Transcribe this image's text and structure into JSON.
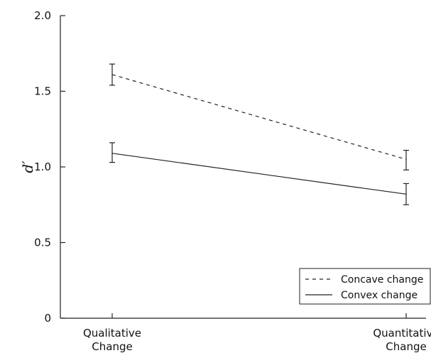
{
  "chart_data": {
    "type": "line",
    "categories": [
      "Qualitative\nChange",
      "Quantitative\nChange"
    ],
    "ylabel": "d′",
    "xlabel": "",
    "ylim": [
      0,
      2.0
    ],
    "yticks": [
      0,
      0.5,
      1.0,
      1.5,
      2.0
    ],
    "ytick_labels": [
      "0",
      "0.5",
      "1.0",
      "1.5",
      "2.0"
    ],
    "series": [
      {
        "name": "Concave change",
        "style": "dashed",
        "values": [
          1.61,
          1.05
        ],
        "error_low": [
          1.54,
          0.98
        ],
        "error_high": [
          1.68,
          1.11
        ]
      },
      {
        "name": "Convex change",
        "style": "solid",
        "values": [
          1.09,
          0.82
        ],
        "error_low": [
          1.03,
          0.75
        ],
        "error_high": [
          1.16,
          0.89
        ]
      }
    ],
    "legend_position": "bottom-right",
    "grid": false,
    "line_color": "#222222"
  }
}
